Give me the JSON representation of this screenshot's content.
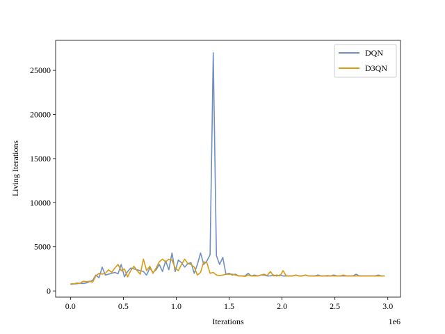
{
  "chart_data": {
    "type": "line",
    "title": "",
    "xlabel": "Iterations",
    "ylabel": "Living Iterations",
    "x_offset_label": "1e6",
    "xlim": [
      -0.14,
      3.12
    ],
    "ylim": [
      -700,
      28400
    ],
    "xticks": [
      0.0,
      0.5,
      1.0,
      1.5,
      2.0,
      2.5,
      3.0
    ],
    "xtick_labels": [
      "0.0",
      "0.5",
      "1.0",
      "1.5",
      "2.0",
      "2.5",
      "3.0"
    ],
    "yticks": [
      0,
      5000,
      10000,
      15000,
      20000,
      25000
    ],
    "ytick_labels": [
      "0",
      "5000",
      "10000",
      "15000",
      "20000",
      "25000"
    ],
    "grid": false,
    "legend_position": "top-right",
    "x": [
      0.0,
      0.03,
      0.06,
      0.09,
      0.12,
      0.15,
      0.18,
      0.21,
      0.24,
      0.27,
      0.3,
      0.33,
      0.36,
      0.39,
      0.42,
      0.45,
      0.48,
      0.51,
      0.54,
      0.57,
      0.6,
      0.63,
      0.66,
      0.69,
      0.72,
      0.75,
      0.78,
      0.81,
      0.84,
      0.87,
      0.9,
      0.93,
      0.96,
      0.99,
      1.02,
      1.05,
      1.08,
      1.11,
      1.14,
      1.17,
      1.2,
      1.23,
      1.26,
      1.29,
      1.32,
      1.35,
      1.38,
      1.41,
      1.44,
      1.47,
      1.5,
      1.53,
      1.56,
      1.59,
      1.62,
      1.65,
      1.68,
      1.71,
      1.74,
      1.77,
      1.8,
      1.83,
      1.86,
      1.89,
      1.92,
      1.95,
      1.98,
      2.01,
      2.04,
      2.07,
      2.1,
      2.13,
      2.16,
      2.19,
      2.22,
      2.25,
      2.28,
      2.31,
      2.34,
      2.37,
      2.4,
      2.43,
      2.46,
      2.49,
      2.52,
      2.55,
      2.58,
      2.61,
      2.64,
      2.67,
      2.7,
      2.73,
      2.76,
      2.79,
      2.82,
      2.85,
      2.88,
      2.91,
      2.94,
      2.97
    ],
    "series": [
      {
        "name": "DQN",
        "color": "#6f8fbf",
        "values": [
          750,
          780,
          820,
          860,
          850,
          900,
          1050,
          1200,
          1800,
          1500,
          2700,
          1800,
          1900,
          2000,
          2100,
          1950,
          3000,
          1600,
          2200,
          2600,
          2500,
          2400,
          2300,
          2200,
          1800,
          2600,
          2100,
          2400,
          3000,
          2200,
          3400,
          2400,
          4300,
          2200,
          3500,
          3200,
          2700,
          3100,
          3200,
          2000,
          3000,
          4300,
          3000,
          3400,
          4100,
          27000,
          4000,
          3000,
          3800,
          1900,
          2000,
          1800,
          1900,
          1700,
          1700,
          1700,
          2000,
          1700,
          1800,
          1700,
          1800,
          1800,
          1700,
          1700,
          1800,
          1700,
          1800,
          1700,
          1700,
          1700,
          1700,
          1800,
          1700,
          1700,
          1800,
          1700,
          1700,
          1700,
          1800,
          1700,
          1700,
          1700,
          1700,
          1800,
          1700,
          1700,
          1700,
          1700,
          1700,
          1700,
          1900,
          1700,
          1700,
          1700,
          1700,
          1700,
          1700,
          1800,
          1700,
          1700
        ]
      },
      {
        "name": "D3QN",
        "color": "#d99a11",
        "values": [
          800,
          800,
          900,
          850,
          1100,
          1050,
          1100,
          1000,
          1700,
          2000,
          1900,
          2000,
          2400,
          2100,
          2600,
          3000,
          2300,
          2500,
          1600,
          2300,
          2800,
          2300,
          1900,
          3600,
          2300,
          2800,
          2000,
          2600,
          3300,
          3600,
          3300,
          3600,
          3500,
          2600,
          2300,
          3000,
          3600,
          3100,
          3000,
          2700,
          1800,
          2100,
          3300,
          3200,
          2000,
          2100,
          1800,
          1750,
          1800,
          1900,
          1900,
          1900,
          1800,
          1700,
          1700,
          1650,
          1800,
          1700,
          1700,
          1700,
          1800,
          1900,
          1750,
          2200,
          1700,
          1800,
          1700,
          2300,
          1700,
          1700,
          1700,
          1800,
          1700,
          1700,
          1800,
          1700,
          1700,
          1700,
          1700,
          1700,
          1700,
          1750,
          1700,
          1700,
          1700,
          1700,
          1800,
          1700,
          1700,
          1700,
          1700,
          1700,
          1700,
          1700,
          1700,
          1700,
          1700,
          1700,
          1700,
          1700
        ]
      }
    ]
  }
}
